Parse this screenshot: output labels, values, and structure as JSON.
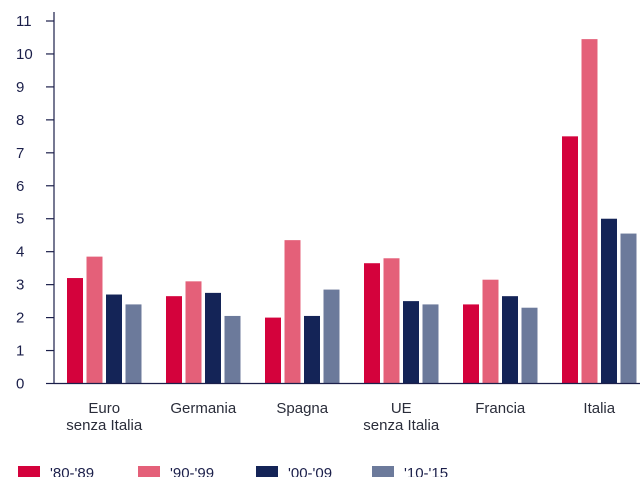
{
  "chart_data": {
    "type": "bar",
    "categories": [
      [
        "Euro",
        "senza Italia"
      ],
      [
        "Germania"
      ],
      [
        "Spagna"
      ],
      [
        "UE",
        "senza Italia"
      ],
      [
        "Francia"
      ],
      [
        "Italia"
      ]
    ],
    "series": [
      {
        "name": "'80-'89",
        "color": "#d4023c",
        "values": [
          3.2,
          2.65,
          2.0,
          3.65,
          2.4,
          7.5
        ]
      },
      {
        "name": "'90-'99",
        "color": "#e46079",
        "values": [
          3.85,
          3.1,
          4.35,
          3.8,
          3.15,
          10.45
        ]
      },
      {
        "name": "'00-'09",
        "color": "#142457",
        "values": [
          2.7,
          2.75,
          2.05,
          2.5,
          2.65,
          5.0
        ]
      },
      {
        "name": "'10-'15",
        "color": "#6c7a9b",
        "values": [
          2.4,
          2.05,
          2.85,
          2.4,
          2.3,
          4.55
        ]
      }
    ],
    "ylim": [
      0,
      11
    ],
    "yticks": [
      0,
      1,
      2,
      3,
      4,
      5,
      6,
      7,
      8,
      9,
      10,
      11
    ],
    "grid": false,
    "legend": "bottom",
    "title": "",
    "xlabel": "",
    "ylabel": ""
  }
}
